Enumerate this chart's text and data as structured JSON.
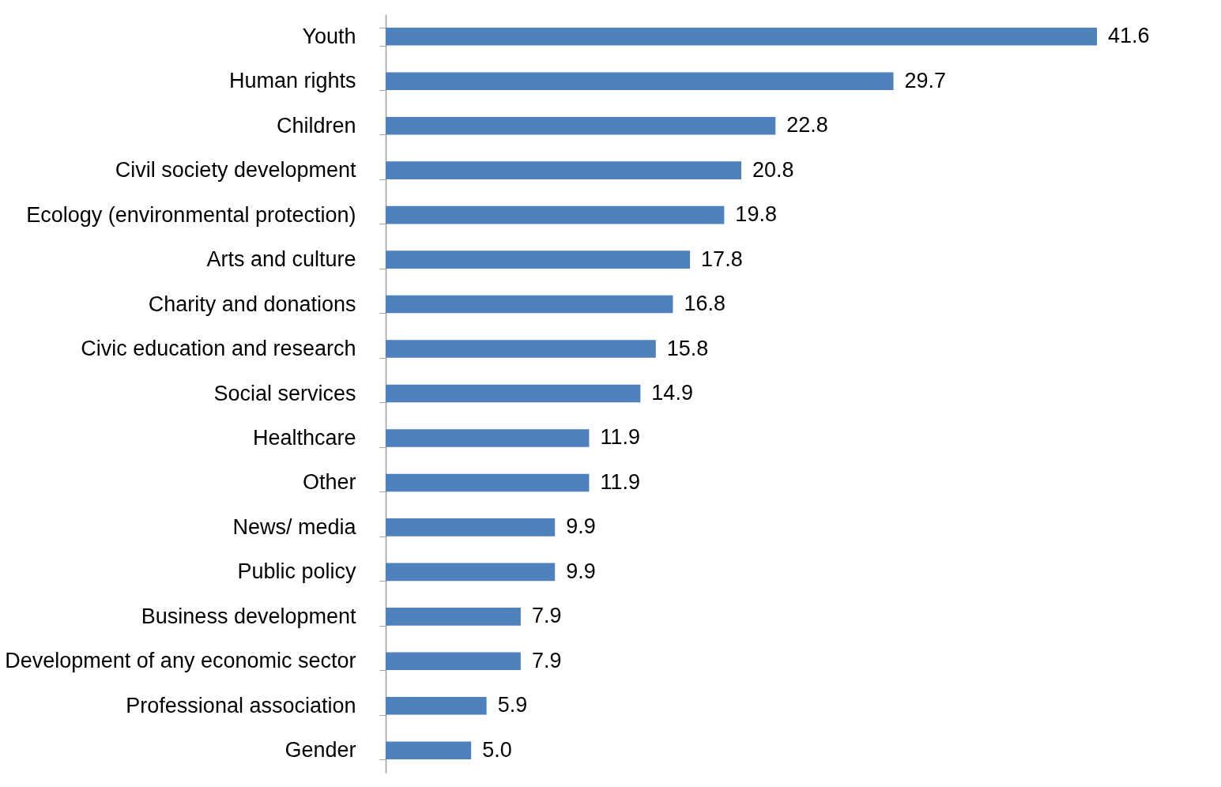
{
  "chart_data": {
    "type": "bar",
    "orientation": "horizontal",
    "categories": [
      "Youth",
      "Human rights",
      "Children",
      "Civil society development",
      "Ecology (environmental protection)",
      "Arts and culture",
      "Charity and donations",
      "Civic education and research",
      "Social services",
      "Healthcare",
      "Other ",
      "News/ media",
      "Public policy",
      "Business development",
      "Development of any economic sector",
      "Professional association",
      "Gender"
    ],
    "values": [
      41.6,
      29.7,
      22.8,
      20.8,
      19.8,
      17.8,
      16.8,
      15.8,
      14.9,
      11.9,
      11.9,
      9.9,
      9.9,
      7.9,
      7.9,
      5.9,
      5.0
    ],
    "value_labels": [
      "41.6",
      "29.7",
      "22.8",
      "20.8",
      "19.8",
      "17.8",
      "16.8",
      "15.8",
      "14.9",
      "11.9",
      "11.9",
      "9.9",
      "9.9",
      "7.9",
      "7.9",
      "5.9",
      "5.0"
    ],
    "color": "#4f81bd"
  }
}
